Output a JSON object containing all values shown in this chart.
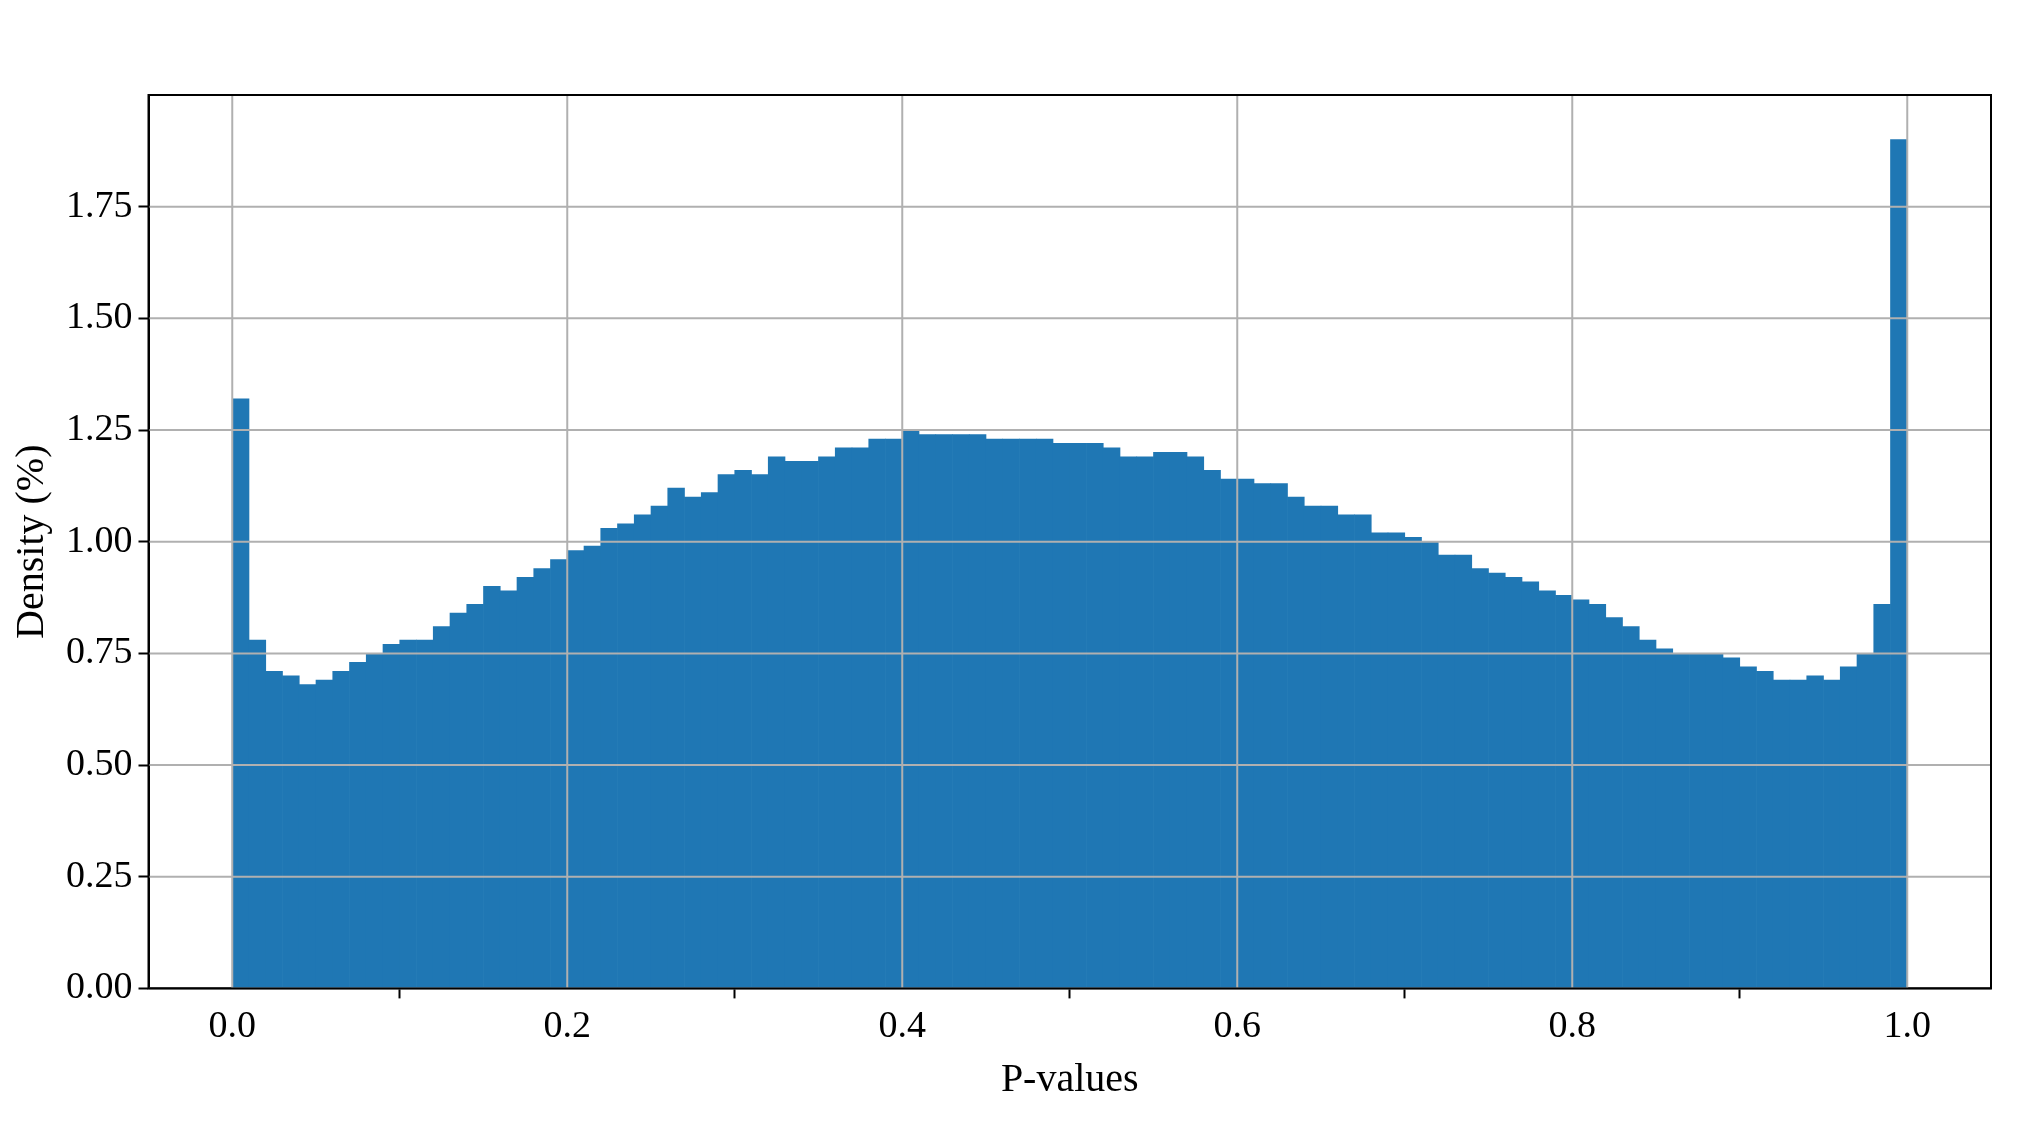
{
  "chart_data": {
    "type": "histogram",
    "xlabel": "P-values",
    "ylabel": "Density (%)",
    "color": "#1f77b4",
    "bins": [
      0,
      0.01,
      0.02,
      0.03,
      0.04,
      0.05,
      0.06,
      0.07,
      0.08,
      0.09,
      0.1,
      0.11,
      0.12,
      0.13,
      0.14,
      0.15,
      0.16,
      0.17,
      0.18,
      0.19,
      0.2,
      0.21,
      0.22,
      0.23,
      0.24,
      0.25,
      0.26,
      0.27,
      0.28,
      0.29,
      0.3,
      0.31,
      0.32,
      0.33,
      0.34,
      0.35,
      0.36,
      0.37,
      0.38,
      0.39,
      0.4,
      0.41,
      0.42,
      0.43,
      0.44,
      0.45,
      0.46,
      0.47,
      0.48,
      0.49,
      0.5,
      0.51,
      0.52,
      0.53,
      0.54,
      0.55,
      0.56,
      0.57,
      0.58,
      0.59,
      0.6,
      0.61,
      0.62,
      0.63,
      0.64,
      0.65,
      0.66,
      0.67,
      0.68,
      0.69,
      0.7,
      0.71,
      0.72,
      0.73,
      0.74,
      0.75,
      0.76,
      0.77,
      0.78,
      0.79,
      0.8,
      0.81,
      0.82,
      0.83,
      0.84,
      0.85,
      0.86,
      0.87,
      0.88,
      0.89,
      0.9,
      0.91,
      0.92,
      0.93,
      0.94,
      0.95,
      0.96,
      0.97,
      0.98,
      0.99,
      1
    ],
    "values": [
      1.32,
      0.78,
      0.71,
      0.7,
      0.68,
      0.69,
      0.71,
      0.73,
      0.75,
      0.77,
      0.78,
      0.78,
      0.81,
      0.84,
      0.86,
      0.9,
      0.89,
      0.92,
      0.94,
      0.96,
      0.98,
      0.99,
      1.03,
      1.04,
      1.06,
      1.08,
      1.12,
      1.1,
      1.11,
      1.15,
      1.16,
      1.15,
      1.19,
      1.18,
      1.18,
      1.19,
      1.21,
      1.21,
      1.23,
      1.23,
      1.25,
      1.24,
      1.24,
      1.24,
      1.24,
      1.23,
      1.23,
      1.23,
      1.23,
      1.22,
      1.22,
      1.22,
      1.21,
      1.19,
      1.19,
      1.2,
      1.2,
      1.19,
      1.16,
      1.14,
      1.14,
      1.13,
      1.13,
      1.1,
      1.08,
      1.08,
      1.06,
      1.06,
      1.02,
      1.02,
      1.01,
      1.0,
      0.97,
      0.97,
      0.94,
      0.93,
      0.92,
      0.91,
      0.89,
      0.88,
      0.87,
      0.86,
      0.83,
      0.81,
      0.78,
      0.76,
      0.75,
      0.75,
      0.75,
      0.74,
      0.72,
      0.71,
      0.69,
      0.69,
      0.7,
      0.69,
      0.72,
      0.75,
      0.86,
      1.9
    ],
    "xlim": [
      -0.05,
      1.05
    ],
    "xticks": [
      {
        "value": 0,
        "label": "0.0"
      },
      {
        "value": 0.2,
        "label": "0.2"
      },
      {
        "value": 0.4,
        "label": "0.4"
      },
      {
        "value": 0.6,
        "label": "0.6"
      },
      {
        "value": 0.8,
        "label": "0.8"
      },
      {
        "value": 1,
        "label": "1.0"
      }
    ],
    "ylim": [
      0,
      2.0
    ],
    "yticks": [
      {
        "value": 0,
        "label": "0.00"
      },
      {
        "value": 0.25,
        "label": "0.25"
      },
      {
        "value": 0.5,
        "label": "0.50"
      },
      {
        "value": 0.75,
        "label": "0.75"
      },
      {
        "value": 1,
        "label": "1.00"
      },
      {
        "value": 1.25,
        "label": "1.25"
      },
      {
        "value": 1.5,
        "label": "1.50"
      },
      {
        "value": 1.75,
        "label": "1.75"
      }
    ],
    "grid": true
  }
}
